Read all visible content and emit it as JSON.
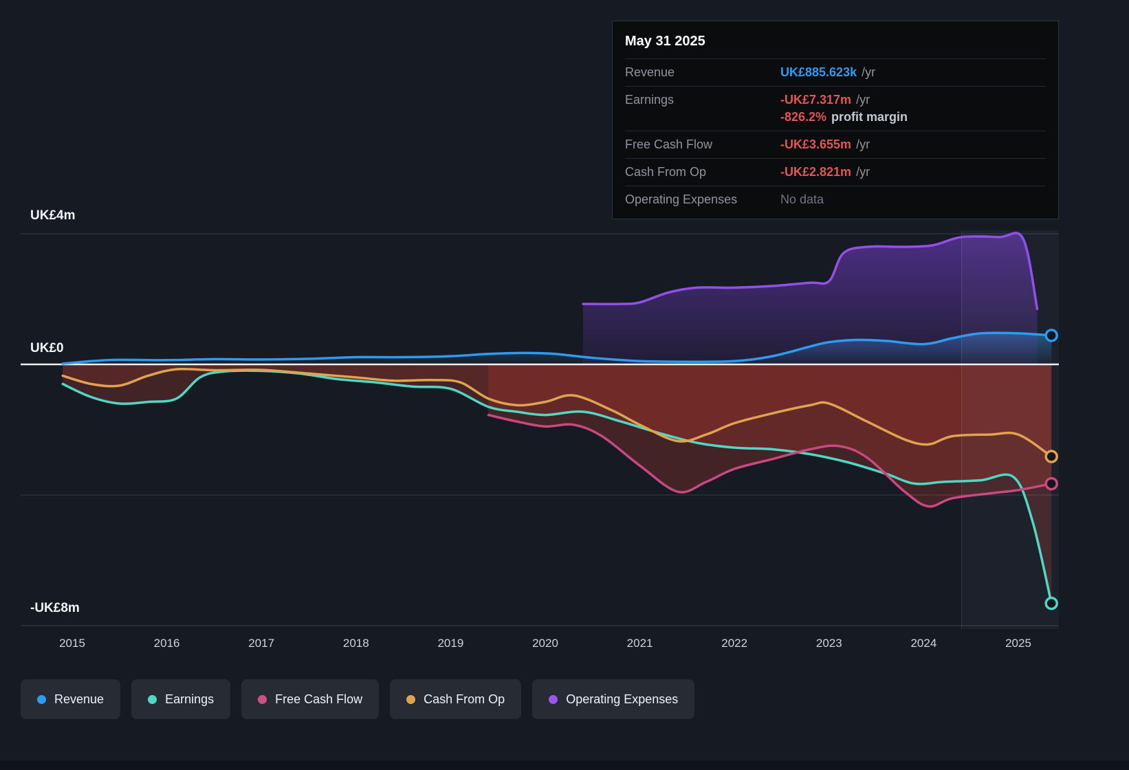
{
  "tooltip": {
    "date": "May 31 2025",
    "rows": {
      "revenue_label": "Revenue",
      "revenue_value": "UK£885.623k",
      "revenue_unit": "/yr",
      "earnings_label": "Earnings",
      "earnings_value": "-UK£7.317m",
      "earnings_unit": "/yr",
      "margin_value": "-826.2%",
      "margin_suffix": "profit margin",
      "fcf_label": "Free Cash Flow",
      "fcf_value": "-UK£3.655m",
      "fcf_unit": "/yr",
      "cashop_label": "Cash From Op",
      "cashop_value": "-UK£2.821m",
      "cashop_unit": "/yr",
      "opex_label": "Operating Expenses",
      "opex_value": "No data"
    }
  },
  "axis": {
    "y_top": "UK£4m",
    "y_zero": "UK£0",
    "y_bottom": "-UK£8m"
  },
  "legend": {
    "items": [
      {
        "label": "Revenue",
        "color": "#2d9bf0"
      },
      {
        "label": "Earnings",
        "color": "#4fd8c4"
      },
      {
        "label": "Free Cash Flow",
        "color": "#cf4f8a"
      },
      {
        "label": "Cash From Op",
        "color": "#e0a34e"
      },
      {
        "label": "Operating Expenses",
        "color": "#9a55f2"
      }
    ]
  },
  "chart_data": {
    "type": "line",
    "currency_unit": "UK£ millions",
    "ylim": [
      -8,
      4
    ],
    "gridlines": [
      4,
      -4,
      -8
    ],
    "x_ticks": [
      2015,
      2016,
      2017,
      2018,
      2019,
      2020,
      2021,
      2022,
      2023,
      2024,
      2025
    ],
    "divider_x": 2024.4,
    "series": [
      {
        "name": "Revenue",
        "color": "#2d9bf0",
        "fill_style": "blue-gradient",
        "fill_opacity": 1,
        "end_marker": true,
        "points": [
          [
            2014.9,
            0.02
          ],
          [
            2015.2,
            0.1
          ],
          [
            2015.5,
            0.14
          ],
          [
            2016,
            0.13
          ],
          [
            2016.5,
            0.16
          ],
          [
            2017,
            0.15
          ],
          [
            2017.5,
            0.17
          ],
          [
            2018,
            0.22
          ],
          [
            2018.5,
            0.22
          ],
          [
            2019,
            0.25
          ],
          [
            2019.4,
            0.32
          ],
          [
            2019.8,
            0.35
          ],
          [
            2020.1,
            0.32
          ],
          [
            2020.5,
            0.2
          ],
          [
            2021,
            0.1
          ],
          [
            2021.5,
            0.08
          ],
          [
            2022,
            0.1
          ],
          [
            2022.4,
            0.25
          ],
          [
            2022.8,
            0.55
          ],
          [
            2023,
            0.68
          ],
          [
            2023.3,
            0.75
          ],
          [
            2023.6,
            0.72
          ],
          [
            2024,
            0.62
          ],
          [
            2024.3,
            0.8
          ],
          [
            2024.6,
            0.95
          ],
          [
            2025,
            0.95
          ],
          [
            2025.35,
            0.886
          ]
        ]
      },
      {
        "name": "Earnings",
        "color": "#4fd8c4",
        "fill_style": "red",
        "fill_opacity": 0.3,
        "end_marker": true,
        "points": [
          [
            2014.9,
            -0.6
          ],
          [
            2015.2,
            -1.0
          ],
          [
            2015.5,
            -1.2
          ],
          [
            2015.8,
            -1.15
          ],
          [
            2016.1,
            -1.05
          ],
          [
            2016.35,
            -0.4
          ],
          [
            2016.6,
            -0.22
          ],
          [
            2017,
            -0.2
          ],
          [
            2017.4,
            -0.28
          ],
          [
            2017.8,
            -0.45
          ],
          [
            2018.2,
            -0.55
          ],
          [
            2018.6,
            -0.68
          ],
          [
            2019,
            -0.75
          ],
          [
            2019.4,
            -1.3
          ],
          [
            2019.7,
            -1.45
          ],
          [
            2020,
            -1.55
          ],
          [
            2020.4,
            -1.45
          ],
          [
            2020.8,
            -1.75
          ],
          [
            2021.2,
            -2.1
          ],
          [
            2021.6,
            -2.4
          ],
          [
            2022,
            -2.55
          ],
          [
            2022.4,
            -2.6
          ],
          [
            2022.8,
            -2.75
          ],
          [
            2023.2,
            -3.0
          ],
          [
            2023.6,
            -3.35
          ],
          [
            2023.9,
            -3.65
          ],
          [
            2024.2,
            -3.6
          ],
          [
            2024.6,
            -3.55
          ],
          [
            2024.95,
            -3.45
          ],
          [
            2025.15,
            -4.8
          ],
          [
            2025.35,
            -7.317
          ]
        ]
      },
      {
        "name": "Free Cash Flow",
        "color": "#c9497f",
        "fill_style": "red",
        "fill_opacity": 0.32,
        "end_marker": true,
        "points": [
          [
            2019.4,
            -1.55
          ],
          [
            2019.7,
            -1.75
          ],
          [
            2020,
            -1.9
          ],
          [
            2020.3,
            -1.85
          ],
          [
            2020.6,
            -2.2
          ],
          [
            2021,
            -3.1
          ],
          [
            2021.4,
            -3.9
          ],
          [
            2021.7,
            -3.6
          ],
          [
            2022,
            -3.2
          ],
          [
            2022.4,
            -2.9
          ],
          [
            2022.8,
            -2.6
          ],
          [
            2023.1,
            -2.5
          ],
          [
            2023.4,
            -2.85
          ],
          [
            2023.8,
            -3.9
          ],
          [
            2024.05,
            -4.35
          ],
          [
            2024.3,
            -4.1
          ],
          [
            2024.7,
            -3.95
          ],
          [
            2025,
            -3.85
          ],
          [
            2025.35,
            -3.655
          ]
        ]
      },
      {
        "name": "Cash From Op",
        "color": "#e0a34e",
        "fill_style": "red",
        "fill_opacity": 0.2,
        "end_marker": true,
        "points": [
          [
            2014.9,
            -0.35
          ],
          [
            2015.2,
            -0.6
          ],
          [
            2015.5,
            -0.65
          ],
          [
            2015.8,
            -0.35
          ],
          [
            2016.1,
            -0.15
          ],
          [
            2016.5,
            -0.18
          ],
          [
            2017,
            -0.17
          ],
          [
            2017.5,
            -0.28
          ],
          [
            2018,
            -0.4
          ],
          [
            2018.4,
            -0.5
          ],
          [
            2018.8,
            -0.48
          ],
          [
            2019.1,
            -0.55
          ],
          [
            2019.4,
            -1.05
          ],
          [
            2019.7,
            -1.25
          ],
          [
            2020,
            -1.15
          ],
          [
            2020.3,
            -0.95
          ],
          [
            2020.7,
            -1.4
          ],
          [
            2021,
            -1.85
          ],
          [
            2021.4,
            -2.35
          ],
          [
            2021.7,
            -2.15
          ],
          [
            2022,
            -1.8
          ],
          [
            2022.4,
            -1.5
          ],
          [
            2022.8,
            -1.25
          ],
          [
            2023,
            -1.2
          ],
          [
            2023.4,
            -1.75
          ],
          [
            2023.8,
            -2.3
          ],
          [
            2024.05,
            -2.45
          ],
          [
            2024.3,
            -2.2
          ],
          [
            2024.7,
            -2.15
          ],
          [
            2025,
            -2.15
          ],
          [
            2025.35,
            -2.821
          ]
        ]
      },
      {
        "name": "Operating Expenses",
        "color": "#9350e8",
        "fill_style": "purple-gradient",
        "fill_opacity": 1,
        "end_marker": false,
        "points": [
          [
            2020.4,
            1.85
          ],
          [
            2020.8,
            1.85
          ],
          [
            2021,
            1.9
          ],
          [
            2021.3,
            2.2
          ],
          [
            2021.6,
            2.35
          ],
          [
            2022,
            2.35
          ],
          [
            2022.4,
            2.4
          ],
          [
            2022.8,
            2.5
          ],
          [
            2023.0,
            2.55
          ],
          [
            2023.15,
            3.4
          ],
          [
            2023.4,
            3.6
          ],
          [
            2023.8,
            3.6
          ],
          [
            2024.1,
            3.65
          ],
          [
            2024.4,
            3.9
          ],
          [
            2024.8,
            3.9
          ],
          [
            2025.05,
            3.85
          ],
          [
            2025.2,
            1.7
          ]
        ]
      }
    ]
  }
}
